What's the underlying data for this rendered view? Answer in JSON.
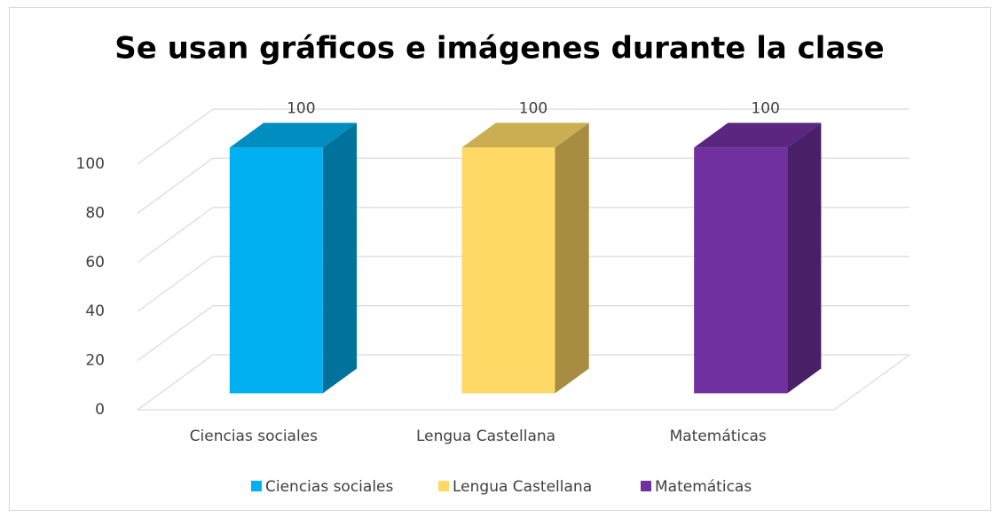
{
  "chart_data": {
    "type": "bar3d",
    "title": "Se usan gráficos e imágenes durante la clase",
    "categories": [
      "Ciencias sociales",
      "Lengua Castellana",
      "Matemáticas"
    ],
    "values": [
      100,
      100,
      100
    ],
    "colors": [
      "#00b0f0",
      "#ffd966",
      "#7030a0"
    ],
    "ylim": [
      0,
      100
    ],
    "yticks": [
      0,
      20,
      40,
      60,
      80,
      100
    ],
    "grid": true,
    "legend": "bottom"
  }
}
